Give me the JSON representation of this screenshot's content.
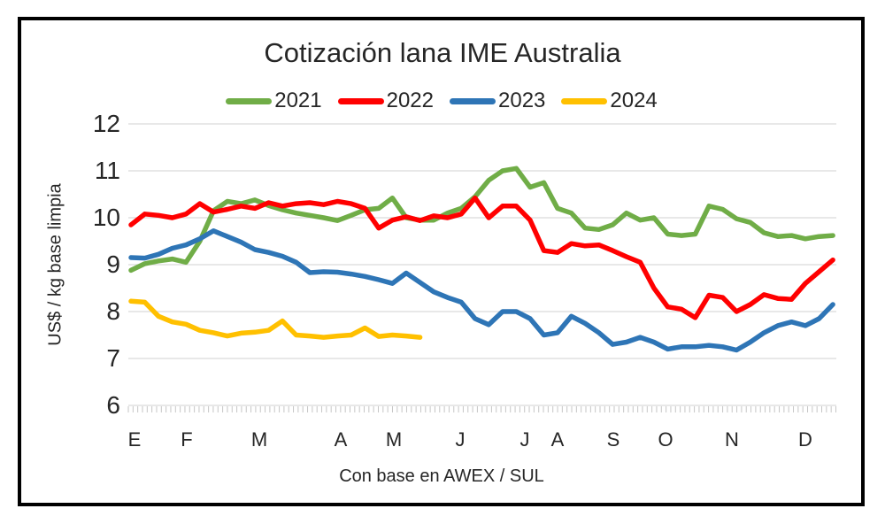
{
  "window": {
    "background_color": "#FFFFFF",
    "frame_border_color": "#000000"
  },
  "chart_data": {
    "type": "line",
    "title": "Cotización lana IME Australia",
    "ylabel": "US$ / kg base limpia",
    "footnote": "Con base en AWEX / SUL",
    "x_unit": "weekly quotations, January–December",
    "x_tick_labels": [
      "E",
      "F",
      "M",
      "A",
      "M",
      "J",
      "J",
      "A",
      "S",
      "O",
      "N",
      "D"
    ],
    "y_ticks": [
      12,
      11,
      10,
      9,
      8,
      7,
      6
    ],
    "ylim": [
      6,
      12
    ],
    "grid": true,
    "legend_position": "top-center",
    "gridline_color": "#D9D9D9",
    "tick_color": "#C6C6C6",
    "text_color": "#262626",
    "series": [
      {
        "name": "2021",
        "color": "#70AD47",
        "values": [
          8.88,
          9.02,
          9.08,
          9.12,
          9.05,
          9.5,
          10.15,
          10.35,
          10.3,
          10.38,
          10.26,
          10.17,
          10.1,
          10.05,
          10.0,
          9.94,
          10.05,
          10.17,
          10.2,
          10.42,
          10.0,
          9.95,
          9.95,
          10.1,
          10.2,
          10.45,
          10.8,
          11.0,
          11.05,
          10.65,
          10.75,
          10.2,
          10.1,
          9.78,
          9.75,
          9.85,
          10.1,
          9.95,
          10.0,
          9.65,
          9.62,
          9.65,
          10.25,
          10.18,
          9.98,
          9.9,
          9.68,
          9.6,
          9.62,
          9.55,
          9.6,
          9.62
        ]
      },
      {
        "name": "2022",
        "color": "#FF0000",
        "values": [
          9.85,
          10.08,
          10.05,
          10.0,
          10.08,
          10.3,
          10.12,
          10.18,
          10.25,
          10.2,
          10.32,
          10.25,
          10.3,
          10.32,
          10.28,
          10.35,
          10.3,
          10.2,
          9.78,
          9.95,
          10.02,
          9.94,
          10.04,
          10.0,
          10.08,
          10.42,
          10.0,
          10.25,
          10.25,
          9.95,
          9.3,
          9.26,
          9.45,
          9.4,
          9.42,
          9.3,
          9.17,
          9.05,
          8.5,
          8.1,
          8.05,
          7.87,
          8.35,
          8.3,
          8.0,
          8.15,
          8.36,
          8.28,
          8.26,
          8.6,
          8.85,
          9.1
        ]
      },
      {
        "name": "2023",
        "color": "#2E75B6",
        "values": [
          9.15,
          9.14,
          9.22,
          9.35,
          9.42,
          9.55,
          9.72,
          9.6,
          9.48,
          9.32,
          9.26,
          9.18,
          9.05,
          8.83,
          8.85,
          8.84,
          8.8,
          8.75,
          8.68,
          8.6,
          8.82,
          8.62,
          8.42,
          8.3,
          8.2,
          7.85,
          7.72,
          8.0,
          8.0,
          7.85,
          7.5,
          7.55,
          7.9,
          7.75,
          7.55,
          7.3,
          7.35,
          7.45,
          7.35,
          7.2,
          7.25,
          7.25,
          7.28,
          7.25,
          7.18,
          7.35,
          7.55,
          7.7,
          7.78,
          7.7,
          7.85,
          8.15
        ]
      },
      {
        "name": "2024",
        "color": "#FFC000",
        "values": [
          8.22,
          8.2,
          7.9,
          7.78,
          7.73,
          7.6,
          7.55,
          7.48,
          7.54,
          7.56,
          7.6,
          7.8,
          7.5,
          7.48,
          7.45,
          7.48,
          7.5,
          7.65,
          7.47,
          7.5,
          7.48,
          7.45
        ]
      }
    ]
  }
}
